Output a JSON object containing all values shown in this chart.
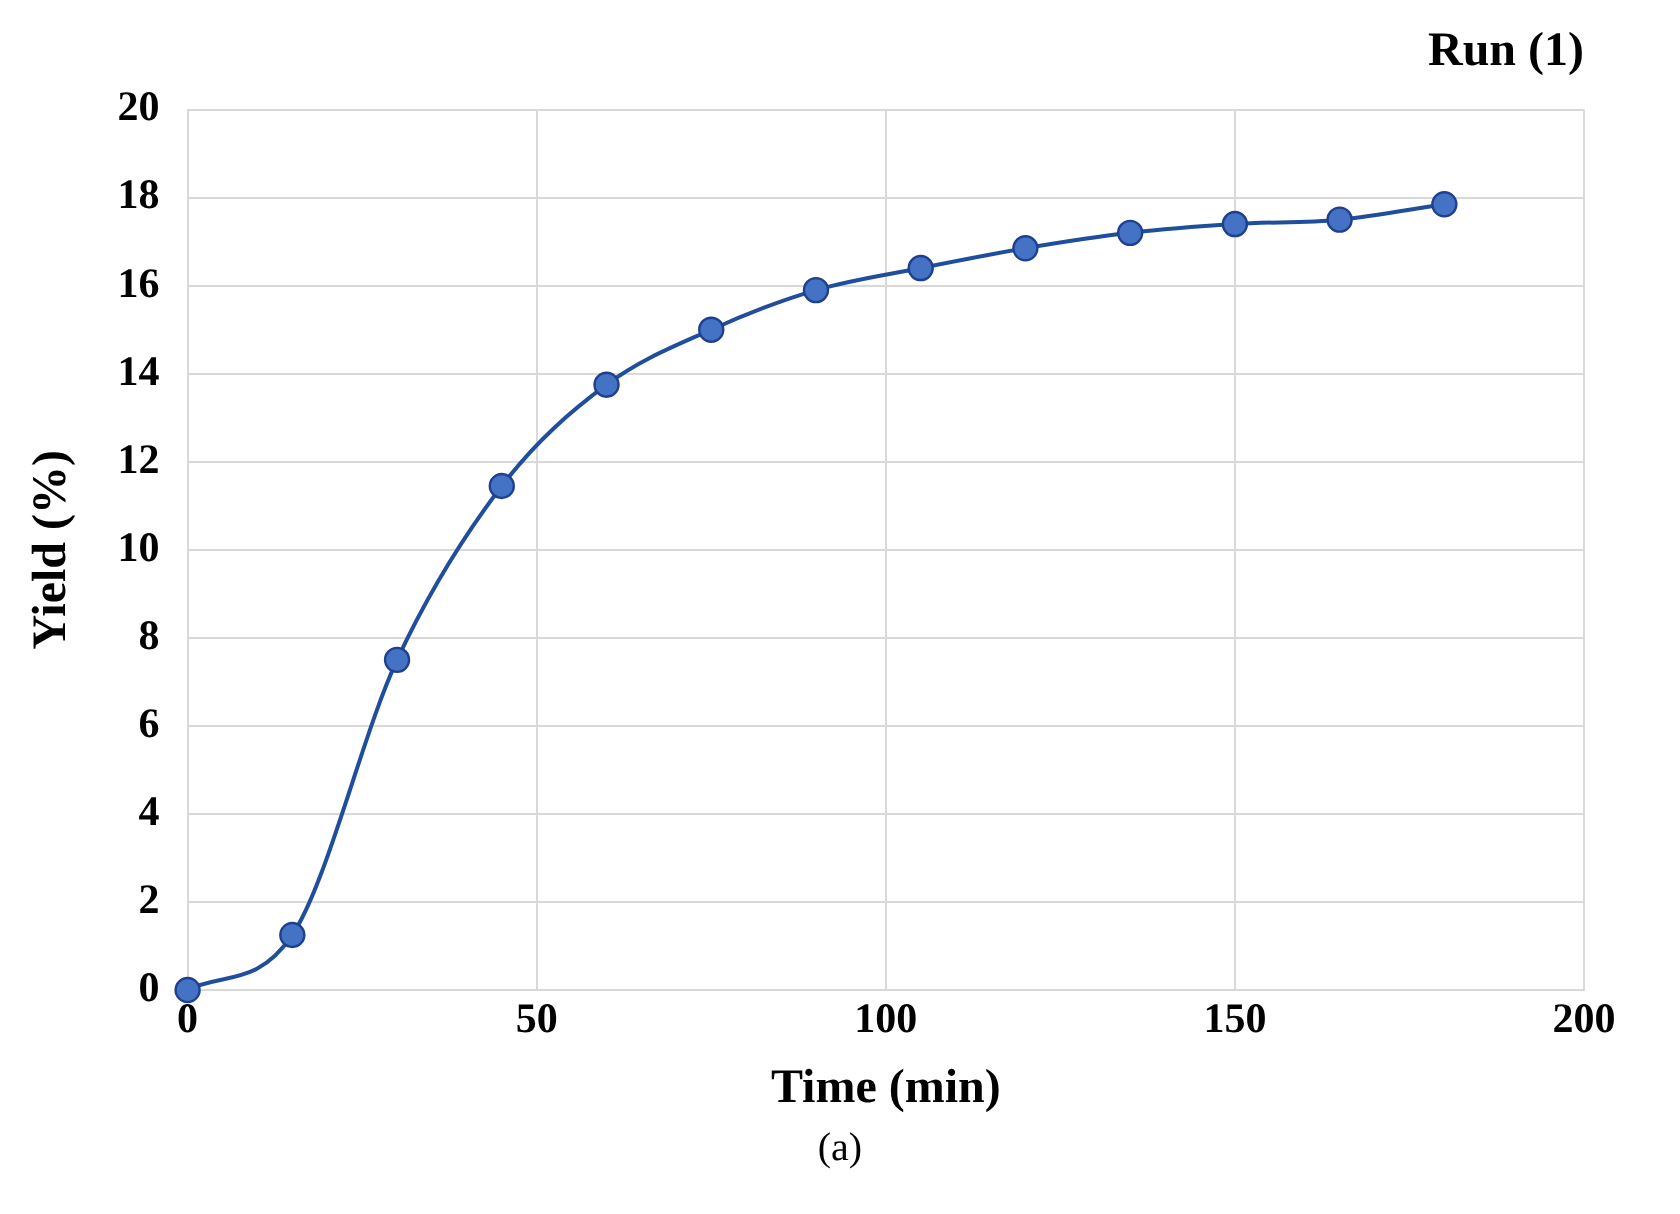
{
  "chart_data": {
    "type": "line",
    "title": "Run (1)",
    "xlabel": "Time (min)",
    "ylabel": "Yield (%)",
    "annotations": [
      "(a)"
    ],
    "x": [
      0,
      15,
      30,
      45,
      60,
      75,
      90,
      105,
      120,
      135,
      150,
      165,
      180
    ],
    "series": [
      {
        "color": "#4472c4",
        "values": [
          0,
          1.25,
          7.5,
          11.45,
          13.75,
          15.0,
          15.9,
          16.4,
          16.85,
          17.2,
          17.4,
          17.5,
          17.85
        ]
      }
    ],
    "xlim": [
      0,
      200
    ],
    "xticks": [
      0,
      50,
      100,
      150,
      200
    ],
    "ylim": [
      0,
      20
    ],
    "yticks": [
      0,
      2,
      4,
      6,
      8,
      10,
      12,
      14,
      16,
      18,
      20
    ],
    "grid": true,
    "legend": false,
    "marker": "circle",
    "line_style": "solid"
  }
}
